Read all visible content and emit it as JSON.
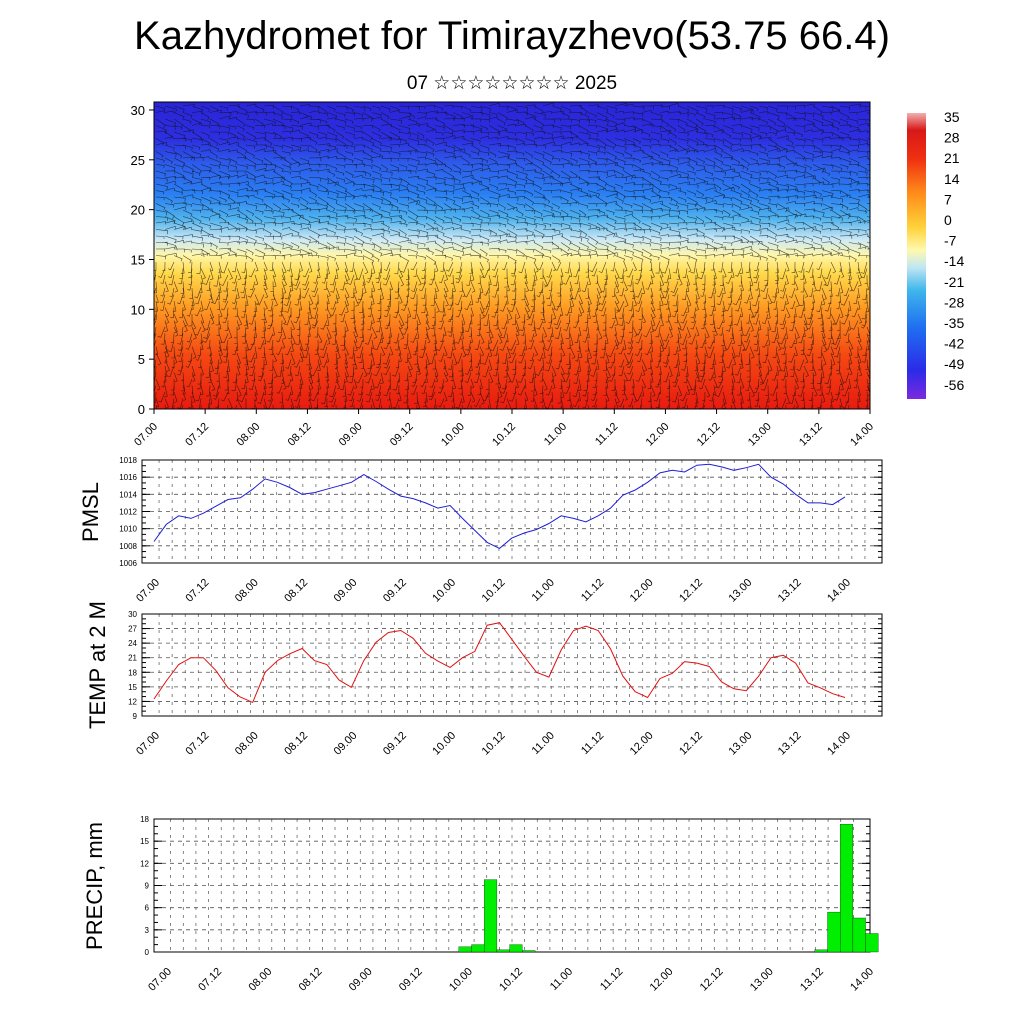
{
  "title": "Kazhydromet for Timirayzhevo(53.75 66.4)",
  "subtitle": "07 ☆☆☆☆☆☆☆☆ 2025",
  "colors": {
    "pmsl_line": "#1f1fd6",
    "temp_line": "#e01010",
    "precip_bar": "#00ee00",
    "precip_bar_edge": "#000000"
  },
  "chart_data": [
    {
      "type": "heatmap",
      "name_ref": "upper-air cross-section",
      "title": "",
      "xlabel": "",
      "ylabel": "",
      "x_ticks": [
        "07.00",
        "07.12",
        "08.00",
        "08.12",
        "09.00",
        "09.12",
        "10.00",
        "10.12",
        "11.00",
        "11.12",
        "12.00",
        "12.12",
        "13.00",
        "13.12",
        "14.00"
      ],
      "y_ticks": [
        "0",
        "5",
        "10",
        "15",
        "20",
        "25",
        "30"
      ],
      "ylim": [
        0,
        30.8
      ],
      "colorbar_labels": [
        "35",
        "28",
        "21",
        "14",
        "7",
        "0",
        "-7",
        "-14",
        "-21",
        "-28",
        "-35",
        "-42",
        "-49",
        "-56"
      ],
      "colorbar_range": [
        -60,
        40
      ],
      "overlay": "wind barbs"
    },
    {
      "type": "line",
      "ylabel": "PMSL",
      "x_ticks": [
        "07.00",
        "07.12",
        "08.00",
        "08.12",
        "09.00",
        "09.12",
        "10.00",
        "10.12",
        "11.00",
        "11.12",
        "12.00",
        "12.12",
        "13.00",
        "13.12",
        "14.00"
      ],
      "y_ticks": [
        "1006",
        "1008",
        "1010",
        "1012",
        "1014",
        "1016",
        "1018"
      ],
      "ylim": [
        1006,
        1018
      ],
      "x": [
        0,
        3,
        6,
        9,
        12,
        15,
        18,
        21,
        24,
        27,
        30,
        33,
        36,
        39,
        42,
        45,
        48,
        51,
        54,
        57,
        60,
        63,
        66,
        69,
        72,
        75,
        78,
        81,
        84,
        87,
        90,
        93,
        96,
        99,
        102,
        105,
        108,
        111,
        114,
        117,
        120,
        123,
        126,
        129,
        132,
        135,
        138,
        141,
        144,
        147,
        150,
        153,
        156,
        159,
        162,
        165,
        168
      ],
      "values": [
        1008.5,
        1010.5,
        1011.5,
        1011.2,
        1011.8,
        1012.6,
        1013.4,
        1013.6,
        1014.6,
        1015.8,
        1015.4,
        1014.8,
        1014.0,
        1014.2,
        1014.6,
        1015.0,
        1015.4,
        1016.3,
        1015.5,
        1014.6,
        1013.8,
        1013.5,
        1013.0,
        1012.4,
        1012.7,
        1011.2,
        1009.8,
        1008.4,
        1007.7,
        1008.9,
        1009.5,
        1009.9,
        1010.6,
        1011.5,
        1011.2,
        1010.8,
        1011.5,
        1012.4,
        1013.9,
        1014.5,
        1015.4,
        1016.5,
        1016.8,
        1016.6,
        1017.4,
        1017.5,
        1017.2,
        1016.8,
        1017.1,
        1017.5,
        1016.0,
        1015.2,
        1014.0,
        1013.0,
        1013.0,
        1012.8,
        1013.7
      ]
    },
    {
      "type": "line",
      "ylabel": "TEMP at 2 M",
      "x_ticks": [
        "07.00",
        "07.12",
        "08.00",
        "08.12",
        "09.00",
        "09.12",
        "10.00",
        "10.12",
        "11.00",
        "11.12",
        "12.00",
        "12.12",
        "13.00",
        "13.12",
        "14.00"
      ],
      "y_ticks": [
        "9",
        "12",
        "15",
        "18",
        "21",
        "24",
        "27",
        "30"
      ],
      "ylim": [
        9,
        30
      ],
      "x": [
        0,
        3,
        6,
        9,
        12,
        15,
        18,
        21,
        24,
        27,
        30,
        33,
        36,
        39,
        42,
        45,
        48,
        51,
        54,
        57,
        60,
        63,
        66,
        69,
        72,
        75,
        78,
        81,
        84,
        87,
        90,
        93,
        96,
        99,
        102,
        105,
        108,
        111,
        114,
        117,
        120,
        123,
        126,
        129,
        132,
        135,
        138,
        141,
        144,
        147,
        150,
        153,
        156,
        159,
        162,
        165,
        168
      ],
      "values": [
        12.5,
        16.2,
        19.6,
        21.0,
        21.0,
        18.4,
        14.8,
        12.9,
        11.8,
        18.0,
        20.4,
        21.8,
        22.9,
        20.4,
        19.6,
        16.4,
        14.9,
        20.4,
        24.2,
        26.2,
        26.6,
        25.0,
        21.9,
        20.3,
        19.0,
        21.0,
        22.3,
        27.7,
        28.2,
        24.8,
        21.3,
        18.0,
        17.0,
        22.6,
        26.6,
        27.5,
        26.6,
        22.8,
        17.2,
        14.0,
        12.8,
        16.7,
        17.8,
        20.2,
        19.9,
        19.2,
        16.0,
        14.6,
        14.2,
        17.2,
        21.0,
        21.5,
        19.9,
        15.8,
        14.8,
        13.6,
        12.8
      ]
    },
    {
      "type": "bar",
      "ylabel": "PRECIP, mm",
      "x_ticks": [
        "07.00",
        "07.12",
        "08.00",
        "08.12",
        "09.00",
        "09.12",
        "10.00",
        "10.12",
        "11.00",
        "11.12",
        "12.00",
        "12.12",
        "13.00",
        "13.12",
        "14.00"
      ],
      "y_ticks": [
        "0",
        "3",
        "6",
        "9",
        "12",
        "15",
        "18"
      ],
      "ylim": [
        0,
        18
      ],
      "bin_hours": 3,
      "bins": [
        {
          "start": 72,
          "value": 0.7
        },
        {
          "start": 75,
          "value": 1.0
        },
        {
          "start": 78,
          "value": 9.8
        },
        {
          "start": 81,
          "value": 0.3
        },
        {
          "start": 84,
          "value": 1.0
        },
        {
          "start": 87,
          "value": 0.2
        },
        {
          "start": 156,
          "value": 0.3
        },
        {
          "start": 159,
          "value": 5.4
        },
        {
          "start": 162,
          "value": 17.3
        },
        {
          "start": 165,
          "value": 4.6
        },
        {
          "start": 168,
          "value": 2.5
        }
      ]
    }
  ]
}
